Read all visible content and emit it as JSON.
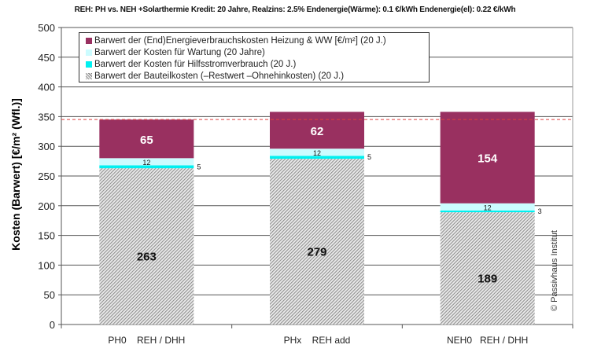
{
  "chart_data": {
    "type": "stacked-bar",
    "title": "REH: PH vs. NEH +Solarthermie Kredit: 20 Jahre,  Realzins: 2.5%  Endenergie(Wärme): 0.1 €/kWh  Endenergie(el): 0.22 €/kWh",
    "ylabel": "Kosten (Barwert)  [€/m² (Wfl.)]",
    "xlabel": "",
    "ylim": [
      0,
      500
    ],
    "yticks": [
      0,
      50,
      100,
      150,
      200,
      250,
      300,
      350,
      400,
      450,
      500
    ],
    "categories": [
      "PH0    REH / DHH",
      "PHx    REH add",
      "NEH0   REH / DHH"
    ],
    "reference_line": 345,
    "series": [
      {
        "name": "Barwert der Bauteilkosten (–Restwert –Ohnehinkosten)  (20 J.)",
        "color": "#999999",
        "pattern": "hatch",
        "values": [
          263,
          279,
          189
        ]
      },
      {
        "name": "Barwert der Kosten für  Hilfsstromverbrauch (20 J.)",
        "color": "#00f0f0",
        "values": [
          5,
          5,
          3
        ]
      },
      {
        "name": "Barwert der Kosten für  Wartung (20 Jahre)",
        "color": "#ccfcff",
        "values": [
          12,
          12,
          12
        ]
      },
      {
        "name": "Barwert der (End)Energieverbrauchskosten Heizung & WW   [€/m²]  (20 J.)",
        "color": "#993060",
        "values": [
          65,
          62,
          154
        ]
      }
    ],
    "legend_order": [
      3,
      2,
      1,
      0
    ],
    "legend_position": "top-left",
    "grid": true
  },
  "watermark": "© Passivhaus Institut"
}
